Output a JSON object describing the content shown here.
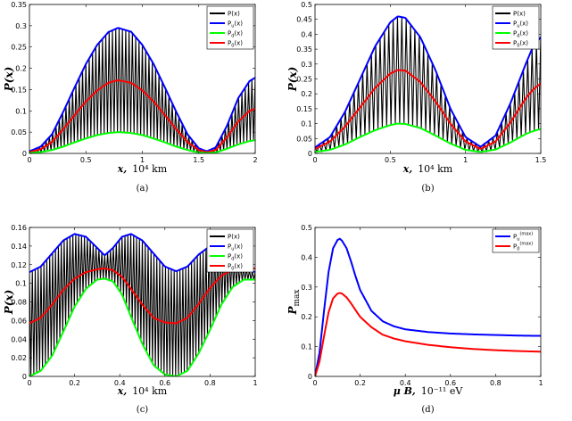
{
  "chart_data": [
    {
      "id": "a",
      "type": "line",
      "caption": "(a)",
      "xlabel": "x,",
      "xunit": "10⁴ km",
      "ylabel": "P(x)",
      "xlim": [
        0,
        2
      ],
      "ylim": [
        0,
        0.35
      ],
      "xticks": [
        "0",
        "0.5",
        "1",
        "1.5",
        "2"
      ],
      "xtick_values": [
        0,
        0.5,
        1,
        1.5,
        2
      ],
      "yticks": [
        "0",
        "0.05",
        "0.1",
        "0.15",
        "0.2",
        "0.25",
        "0.3",
        "0.35"
      ],
      "ytick_values": [
        0,
        0.05,
        0.1,
        0.15,
        0.2,
        0.25,
        0.3,
        0.35
      ],
      "legend": {
        "position": "top-right",
        "entries": [
          {
            "label": "P(x)",
            "sub": "",
            "suffix": "",
            "color": "#000000"
          },
          {
            "label": "P",
            "sub": "u",
            "suffix": "(x)",
            "color": "#0000ff"
          },
          {
            "label": "P",
            "sub": "d",
            "suffix": "(x)",
            "color": "#00ff00"
          },
          {
            "label": "P",
            "sub": "0",
            "suffix": "(x)",
            "color": "#ff0000"
          }
        ]
      },
      "series": [
        {
          "name": "P_u(x)",
          "color": "#0000ff",
          "x": [
            0,
            0.1,
            0.2,
            0.3,
            0.4,
            0.5,
            0.6,
            0.7,
            0.785,
            0.9,
            1.0,
            1.1,
            1.2,
            1.3,
            1.4,
            1.5,
            1.571,
            1.65,
            1.75,
            1.85,
            1.95,
            2.0
          ],
          "y": [
            0.005,
            0.016,
            0.045,
            0.098,
            0.155,
            0.21,
            0.255,
            0.285,
            0.295,
            0.286,
            0.255,
            0.21,
            0.155,
            0.098,
            0.045,
            0.012,
            0.005,
            0.014,
            0.065,
            0.13,
            0.17,
            0.178
          ]
        },
        {
          "name": "P_0(x)",
          "color": "#ff0000",
          "x": [
            0,
            0.1,
            0.2,
            0.3,
            0.4,
            0.5,
            0.6,
            0.7,
            0.785,
            0.9,
            1.0,
            1.1,
            1.2,
            1.3,
            1.4,
            1.5,
            1.571,
            1.65,
            1.75,
            1.85,
            1.95,
            2.0
          ],
          "y": [
            0.003,
            0.01,
            0.027,
            0.057,
            0.09,
            0.122,
            0.148,
            0.166,
            0.172,
            0.166,
            0.148,
            0.122,
            0.09,
            0.057,
            0.027,
            0.008,
            0.003,
            0.008,
            0.038,
            0.075,
            0.1,
            0.105
          ]
        },
        {
          "name": "P_d(x)",
          "color": "#00ff00",
          "x": [
            0,
            0.1,
            0.2,
            0.3,
            0.4,
            0.5,
            0.6,
            0.7,
            0.785,
            0.9,
            1.0,
            1.1,
            1.2,
            1.3,
            1.4,
            1.5,
            1.571,
            1.65,
            1.75,
            1.85,
            1.95,
            2.0
          ],
          "y": [
            0.001,
            0.003,
            0.008,
            0.016,
            0.026,
            0.035,
            0.043,
            0.048,
            0.05,
            0.048,
            0.043,
            0.035,
            0.026,
            0.016,
            0.008,
            0.002,
            0.001,
            0.002,
            0.011,
            0.021,
            0.029,
            0.031
          ]
        }
      ],
      "oscillation": {
        "name": "P(x)",
        "color": "#000000",
        "between": [
          "P_d(x)",
          "P_u(x)"
        ],
        "cycles": 68
      }
    },
    {
      "id": "b",
      "type": "line",
      "caption": "(b)",
      "xlabel": "x,",
      "xunit": "10⁴ km",
      "ylabel": "P(x)",
      "xlim": [
        0,
        1.5
      ],
      "ylim": [
        0,
        0.5
      ],
      "xticks": [
        "0",
        "0.5",
        "1",
        "1.5"
      ],
      "xtick_values": [
        0,
        0.5,
        1,
        1.5
      ],
      "yticks": [
        "0",
        "0.05",
        "0.1",
        "0.15",
        "0.2",
        "0.25",
        "0.3",
        "0.35",
        "0.4",
        "0.45",
        "0.5"
      ],
      "ytick_values": [
        0,
        0.05,
        0.1,
        0.15,
        0.2,
        0.25,
        0.3,
        0.35,
        0.4,
        0.45,
        0.5
      ],
      "legend": {
        "position": "top-right",
        "entries": [
          {
            "label": "P(x)",
            "sub": "",
            "suffix": "",
            "color": "#000000"
          },
          {
            "label": "P",
            "sub": "u",
            "suffix": "(x)",
            "color": "#0000ff"
          },
          {
            "label": "P",
            "sub": "d",
            "suffix": "(x)",
            "color": "#00ff00"
          },
          {
            "label": "P",
            "sub": "0",
            "suffix": "(x)",
            "color": "#ff0000"
          }
        ]
      },
      "series": [
        {
          "name": "P_u(x)",
          "color": "#0000ff",
          "x": [
            0,
            0.1,
            0.2,
            0.3,
            0.4,
            0.5,
            0.55,
            0.6,
            0.7,
            0.8,
            0.9,
            1.0,
            1.1,
            1.2,
            1.3,
            1.4,
            1.45,
            1.5
          ],
          "y": [
            0.02,
            0.055,
            0.14,
            0.25,
            0.36,
            0.44,
            0.46,
            0.455,
            0.39,
            0.28,
            0.15,
            0.055,
            0.022,
            0.06,
            0.17,
            0.3,
            0.36,
            0.39
          ]
        },
        {
          "name": "P_0(x)",
          "color": "#ff0000",
          "x": [
            0,
            0.1,
            0.2,
            0.3,
            0.4,
            0.5,
            0.55,
            0.6,
            0.7,
            0.8,
            0.9,
            1.0,
            1.1,
            1.2,
            1.3,
            1.4,
            1.45,
            1.5
          ],
          "y": [
            0.015,
            0.04,
            0.09,
            0.155,
            0.22,
            0.268,
            0.28,
            0.278,
            0.24,
            0.175,
            0.1,
            0.04,
            0.015,
            0.04,
            0.105,
            0.185,
            0.215,
            0.235
          ]
        },
        {
          "name": "P_d(x)",
          "color": "#00ff00",
          "x": [
            0,
            0.1,
            0.2,
            0.3,
            0.4,
            0.5,
            0.55,
            0.6,
            0.7,
            0.8,
            0.9,
            1.0,
            1.1,
            1.2,
            1.3,
            1.4,
            1.45,
            1.5
          ],
          "y": [
            0.005,
            0.012,
            0.03,
            0.055,
            0.078,
            0.095,
            0.1,
            0.099,
            0.085,
            0.06,
            0.033,
            0.012,
            0.005,
            0.013,
            0.037,
            0.065,
            0.075,
            0.082
          ]
        }
      ],
      "oscillation": {
        "name": "P(x)",
        "color": "#000000",
        "between": [
          "P_d(x)",
          "P_u(x)"
        ],
        "cycles": 52
      }
    },
    {
      "id": "c",
      "type": "line",
      "caption": "(c)",
      "xlabel": "x,",
      "xunit": "10⁴ km",
      "ylabel": "P(x)",
      "xlim": [
        0,
        1
      ],
      "ylim": [
        0,
        0.16
      ],
      "xticks": [
        "0",
        "0.2",
        "0.4",
        "0.6",
        "0.8",
        "1"
      ],
      "xtick_values": [
        0,
        0.2,
        0.4,
        0.6,
        0.8,
        1
      ],
      "yticks": [
        "0",
        "0.02",
        "0.04",
        "0.06",
        "0.08",
        "0.1",
        "0.12",
        "0.14",
        "0.16"
      ],
      "ytick_values": [
        0,
        0.02,
        0.04,
        0.06,
        0.08,
        0.1,
        0.12,
        0.14,
        0.16
      ],
      "legend": {
        "position": "top-right",
        "entries": [
          {
            "label": "P(x)",
            "sub": "",
            "suffix": "",
            "color": "#000000"
          },
          {
            "label": "P",
            "sub": "u",
            "suffix": "(x)",
            "color": "#0000ff"
          },
          {
            "label": "P",
            "sub": "d",
            "suffix": "(x)",
            "color": "#00ff00"
          },
          {
            "label": "P",
            "sub": "0",
            "suffix": "(x)",
            "color": "#ff0000"
          }
        ]
      },
      "series": [
        {
          "name": "P_u(x)",
          "color": "#0000ff",
          "x": [
            0,
            0.05,
            0.1,
            0.15,
            0.2,
            0.25,
            0.3,
            0.333,
            0.37,
            0.41,
            0.45,
            0.5,
            0.55,
            0.6,
            0.65,
            0.7,
            0.75,
            0.8,
            0.85,
            0.9,
            0.95,
            1.0
          ],
          "y": [
            0.112,
            0.118,
            0.132,
            0.146,
            0.153,
            0.15,
            0.138,
            0.13,
            0.138,
            0.15,
            0.153,
            0.146,
            0.132,
            0.118,
            0.113,
            0.118,
            0.131,
            0.14,
            0.138,
            0.128,
            0.116,
            0.112
          ]
        },
        {
          "name": "P_0(x)",
          "color": "#ff0000",
          "x": [
            0,
            0.05,
            0.1,
            0.15,
            0.2,
            0.25,
            0.3,
            0.333,
            0.37,
            0.41,
            0.45,
            0.5,
            0.55,
            0.6,
            0.65,
            0.7,
            0.75,
            0.8,
            0.85,
            0.9,
            0.95,
            1.0
          ],
          "y": [
            0.057,
            0.063,
            0.077,
            0.093,
            0.105,
            0.112,
            0.115,
            0.116,
            0.114,
            0.107,
            0.094,
            0.077,
            0.063,
            0.058,
            0.057,
            0.063,
            0.078,
            0.095,
            0.108,
            0.115,
            0.116,
            0.116
          ]
        },
        {
          "name": "P_d(x)",
          "color": "#00ff00",
          "x": [
            0,
            0.05,
            0.1,
            0.15,
            0.2,
            0.25,
            0.3,
            0.333,
            0.37,
            0.41,
            0.45,
            0.5,
            0.55,
            0.6,
            0.65,
            0.7,
            0.75,
            0.8,
            0.85,
            0.9,
            0.95,
            1.0
          ],
          "y": [
            0.0,
            0.006,
            0.022,
            0.048,
            0.075,
            0.094,
            0.104,
            0.105,
            0.102,
            0.088,
            0.064,
            0.035,
            0.012,
            0.002,
            0.0,
            0.006,
            0.025,
            0.05,
            0.077,
            0.096,
            0.104,
            0.104
          ]
        }
      ],
      "oscillation": {
        "name": "P(x)",
        "color": "#000000",
        "between": [
          "P_d(x)",
          "P_u(x)"
        ],
        "cycles": 78
      }
    },
    {
      "id": "d",
      "type": "line",
      "caption": "(d)",
      "xlabel": "μ B,",
      "xunit": "10⁻¹¹ eV",
      "ylabel": "P",
      "ylabel_sub": "max",
      "xlim": [
        0,
        1
      ],
      "ylim": [
        0,
        0.5
      ],
      "xticks": [
        "0",
        "0.2",
        "0.4",
        "0.6",
        "0.8",
        "1"
      ],
      "xtick_values": [
        0,
        0.2,
        0.4,
        0.6,
        0.8,
        1
      ],
      "yticks": [
        "0",
        "0.1",
        "0.2",
        "0.3",
        "0.4",
        "0.5"
      ],
      "ytick_values": [
        0,
        0.1,
        0.2,
        0.3,
        0.4,
        0.5
      ],
      "legend": {
        "position": "top-right",
        "entries": [
          {
            "label": "P",
            "sub": "u",
            "sup": "(max)",
            "suffix": "",
            "color": "#0000ff"
          },
          {
            "label": "P",
            "sub": "0",
            "sup": "(max)",
            "suffix": "",
            "color": "#ff0000"
          }
        ]
      },
      "series": [
        {
          "name": "P_u^(max)",
          "color": "#0000ff",
          "x": [
            0,
            0.02,
            0.04,
            0.06,
            0.08,
            0.1,
            0.11,
            0.12,
            0.14,
            0.16,
            0.18,
            0.2,
            0.25,
            0.3,
            0.35,
            0.4,
            0.5,
            0.6,
            0.7,
            0.8,
            0.9,
            1.0
          ],
          "y": [
            0.0,
            0.08,
            0.22,
            0.35,
            0.43,
            0.458,
            0.462,
            0.455,
            0.43,
            0.385,
            0.335,
            0.29,
            0.22,
            0.185,
            0.168,
            0.158,
            0.149,
            0.144,
            0.141,
            0.139,
            0.137,
            0.136
          ]
        },
        {
          "name": "P_0^(max)",
          "color": "#ff0000",
          "x": [
            0,
            0.02,
            0.04,
            0.06,
            0.08,
            0.1,
            0.11,
            0.12,
            0.14,
            0.16,
            0.18,
            0.2,
            0.25,
            0.3,
            0.35,
            0.4,
            0.5,
            0.6,
            0.7,
            0.8,
            0.9,
            1.0
          ],
          "y": [
            0.0,
            0.05,
            0.135,
            0.215,
            0.262,
            0.278,
            0.28,
            0.278,
            0.265,
            0.245,
            0.222,
            0.2,
            0.165,
            0.14,
            0.127,
            0.118,
            0.106,
            0.098,
            0.092,
            0.088,
            0.085,
            0.083
          ]
        }
      ]
    }
  ]
}
